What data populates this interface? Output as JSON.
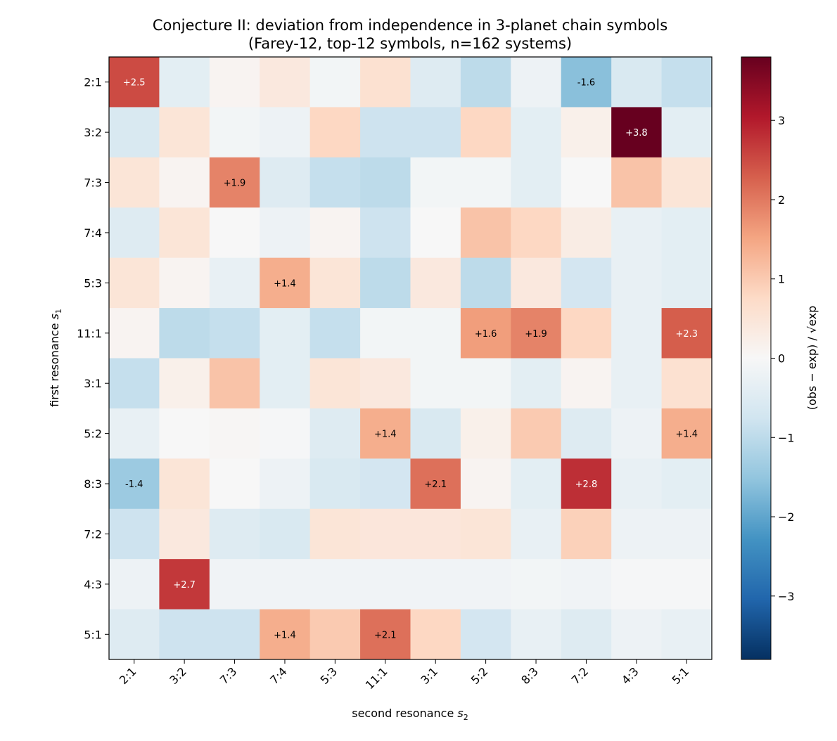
{
  "chart_data": {
    "type": "heatmap",
    "title": "Conjecture II: deviation from independence in 3-planet chain symbols",
    "subtitle": "(Farey-12, top-12 symbols, n=162 systems)",
    "xlabel": "second resonance",
    "xlabel_symbol": "s",
    "xlabel_subscript": "2",
    "ylabel": "first resonance",
    "ylabel_symbol": "s",
    "ylabel_subscript": "1",
    "colorbar_label": "(obs − exp) / √exp",
    "colormap": "RdBu_r",
    "vmin": -3.8,
    "vmax": 3.8,
    "colorbar_ticks": [
      -3,
      -2,
      -1,
      0,
      1,
      2,
      3
    ],
    "colorbar_tick_labels": [
      "−3",
      "−2",
      "−1",
      "0",
      "1",
      "2",
      "3"
    ],
    "x_categories": [
      "2:1",
      "3:2",
      "7:3",
      "7:4",
      "5:3",
      "11:1",
      "3:1",
      "5:2",
      "8:3",
      "7:2",
      "4:3",
      "5:1"
    ],
    "y_categories": [
      "2:1",
      "3:2",
      "7:3",
      "7:4",
      "5:3",
      "11:1",
      "3:1",
      "5:2",
      "8:3",
      "7:2",
      "4:3",
      "5:1"
    ],
    "values": [
      [
        2.5,
        -0.4,
        0.1,
        0.4,
        -0.1,
        0.6,
        -0.5,
        -1.0,
        -0.2,
        -1.6,
        -0.6,
        -0.9
      ],
      [
        -0.6,
        0.5,
        -0.1,
        -0.2,
        0.8,
        -0.8,
        -0.8,
        0.8,
        -0.4,
        0.2,
        3.8,
        -0.4
      ],
      [
        0.5,
        0.1,
        1.9,
        -0.5,
        -0.9,
        -1.0,
        -0.1,
        -0.1,
        -0.4,
        0.0,
        1.1,
        0.5
      ],
      [
        -0.5,
        0.5,
        0.0,
        -0.2,
        0.1,
        -0.8,
        0.0,
        1.1,
        0.8,
        0.3,
        -0.3,
        -0.4
      ],
      [
        0.5,
        0.1,
        -0.3,
        1.4,
        0.5,
        -1.0,
        0.4,
        -1.0,
        0.4,
        -0.7,
        -0.3,
        -0.4
      ],
      [
        0.1,
        -1.0,
        -0.9,
        -0.4,
        -0.9,
        -0.1,
        -0.1,
        1.6,
        1.9,
        0.8,
        -0.3,
        2.3
      ],
      [
        -0.9,
        0.2,
        1.1,
        -0.4,
        0.5,
        0.4,
        -0.1,
        -0.1,
        -0.4,
        0.1,
        -0.3,
        0.6
      ],
      [
        -0.3,
        0.0,
        0.05,
        -0.05,
        -0.5,
        1.4,
        -0.6,
        0.2,
        1.0,
        -0.5,
        -0.2,
        1.4
      ],
      [
        -1.4,
        0.5,
        0.0,
        -0.2,
        -0.6,
        -0.7,
        2.1,
        0.1,
        -0.4,
        2.8,
        -0.3,
        -0.4
      ],
      [
        -0.8,
        0.4,
        -0.5,
        -0.6,
        0.5,
        0.45,
        0.45,
        0.5,
        -0.3,
        0.9,
        -0.2,
        -0.2
      ],
      [
        -0.2,
        2.7,
        -0.15,
        -0.15,
        -0.15,
        -0.15,
        -0.15,
        -0.15,
        -0.1,
        -0.15,
        -0.05,
        -0.05
      ],
      [
        -0.5,
        -0.8,
        -0.8,
        1.4,
        1.0,
        2.1,
        0.8,
        -0.7,
        -0.3,
        -0.5,
        -0.2,
        -0.3
      ]
    ],
    "annotations": [
      {
        "row": 0,
        "col": 0,
        "text": "+2.5"
      },
      {
        "row": 0,
        "col": 9,
        "text": "-1.6"
      },
      {
        "row": 1,
        "col": 10,
        "text": "+3.8"
      },
      {
        "row": 2,
        "col": 2,
        "text": "+1.9"
      },
      {
        "row": 4,
        "col": 3,
        "text": "+1.4"
      },
      {
        "row": 5,
        "col": 7,
        "text": "+1.6"
      },
      {
        "row": 5,
        "col": 8,
        "text": "+1.9"
      },
      {
        "row": 5,
        "col": 11,
        "text": "+2.3"
      },
      {
        "row": 7,
        "col": 5,
        "text": "+1.4"
      },
      {
        "row": 7,
        "col": 11,
        "text": "+1.4"
      },
      {
        "row": 8,
        "col": 0,
        "text": "-1.4"
      },
      {
        "row": 8,
        "col": 6,
        "text": "+2.1"
      },
      {
        "row": 8,
        "col": 9,
        "text": "+2.8"
      },
      {
        "row": 10,
        "col": 1,
        "text": "+2.7"
      },
      {
        "row": 11,
        "col": 3,
        "text": "+1.4"
      },
      {
        "row": 11,
        "col": 5,
        "text": "+2.1"
      }
    ]
  }
}
